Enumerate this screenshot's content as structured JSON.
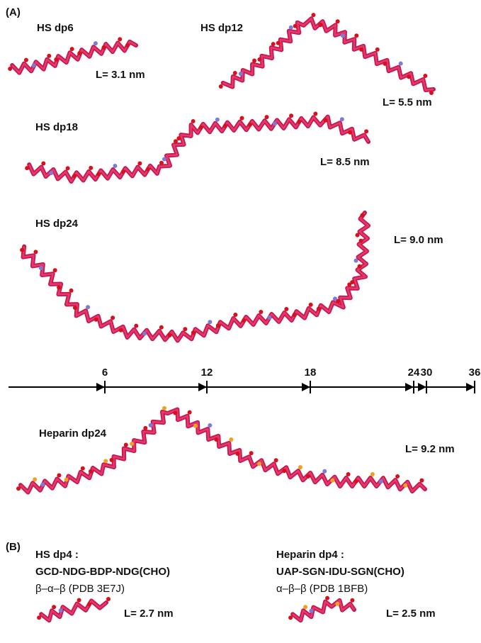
{
  "panel_a": {
    "label": "(A)",
    "molecules": [
      {
        "name": "HS dp6",
        "length": "L= 3.1 nm"
      },
      {
        "name": "HS dp12",
        "length": "L= 5.5 nm"
      },
      {
        "name": "HS dp18",
        "length": "L= 8.5 nm"
      },
      {
        "name": "HS dp24",
        "length": "L= 9.0 nm"
      },
      {
        "name": "Heparin dp24",
        "length": "L= 9.2 nm"
      }
    ]
  },
  "axis": {
    "ticks": [
      6,
      12,
      18,
      24,
      30,
      36
    ]
  },
  "panel_b": {
    "label": "(B)",
    "molecules": [
      {
        "name": "HS dp4 :",
        "sequence": "GCD-NDG-BDP-NDG(CHO)",
        "linkage": "β–α–β (PDB 3E7J)",
        "length": "L= 2.7 nm"
      },
      {
        "name": "Heparin dp4 :",
        "sequence": "UAP-SGN-IDU-SGN(CHO)",
        "linkage": "α–β–β (PDB 1BFB)",
        "length": "L= 2.5 nm"
      }
    ]
  }
}
